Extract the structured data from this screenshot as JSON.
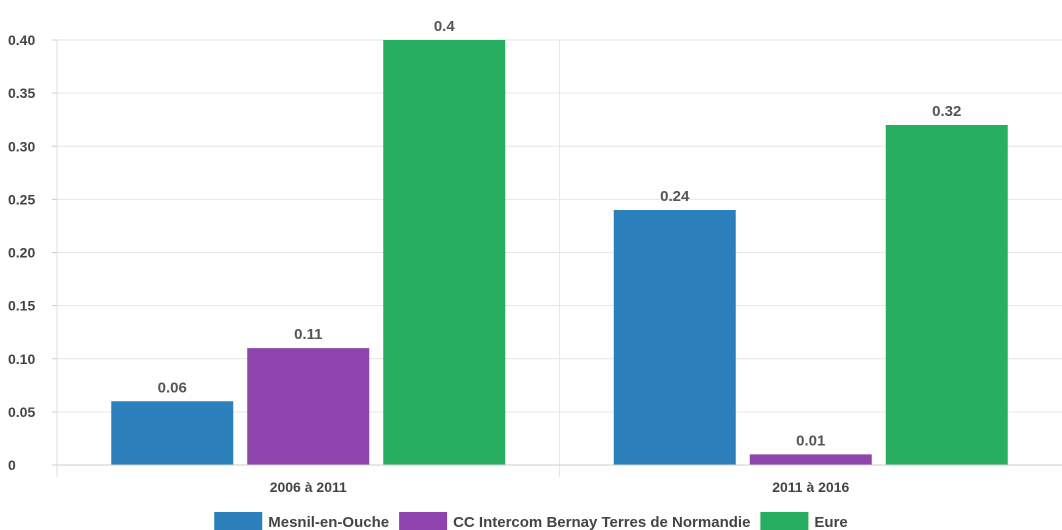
{
  "chart_data": {
    "type": "bar",
    "categories": [
      "2006 à 2011",
      "2011 à 2016"
    ],
    "series": [
      {
        "name": "Mesnil-en-Ouche",
        "values": [
          0.06,
          0.24
        ],
        "color": "#2b7fba"
      },
      {
        "name": "CC Intercom Bernay Terres de Normandie",
        "values": [
          0.11,
          0.01
        ],
        "color": "#8e44ad"
      },
      {
        "name": "Eure",
        "values": [
          0.4,
          0.32
        ],
        "color": "#27ae60"
      }
    ],
    "data_labels": [
      [
        "0.06",
        "0.24"
      ],
      [
        "0.11",
        "0.01"
      ],
      [
        "0.4",
        "0.32"
      ]
    ],
    "yticks": [
      "0",
      "0.05",
      "0.10",
      "0.15",
      "0.20",
      "0.25",
      "0.30",
      "0.35",
      "0.40"
    ],
    "ylim": [
      0,
      0.4
    ],
    "grid": true,
    "legend_position": "bottom",
    "title": "",
    "xlabel": "",
    "ylabel": ""
  }
}
